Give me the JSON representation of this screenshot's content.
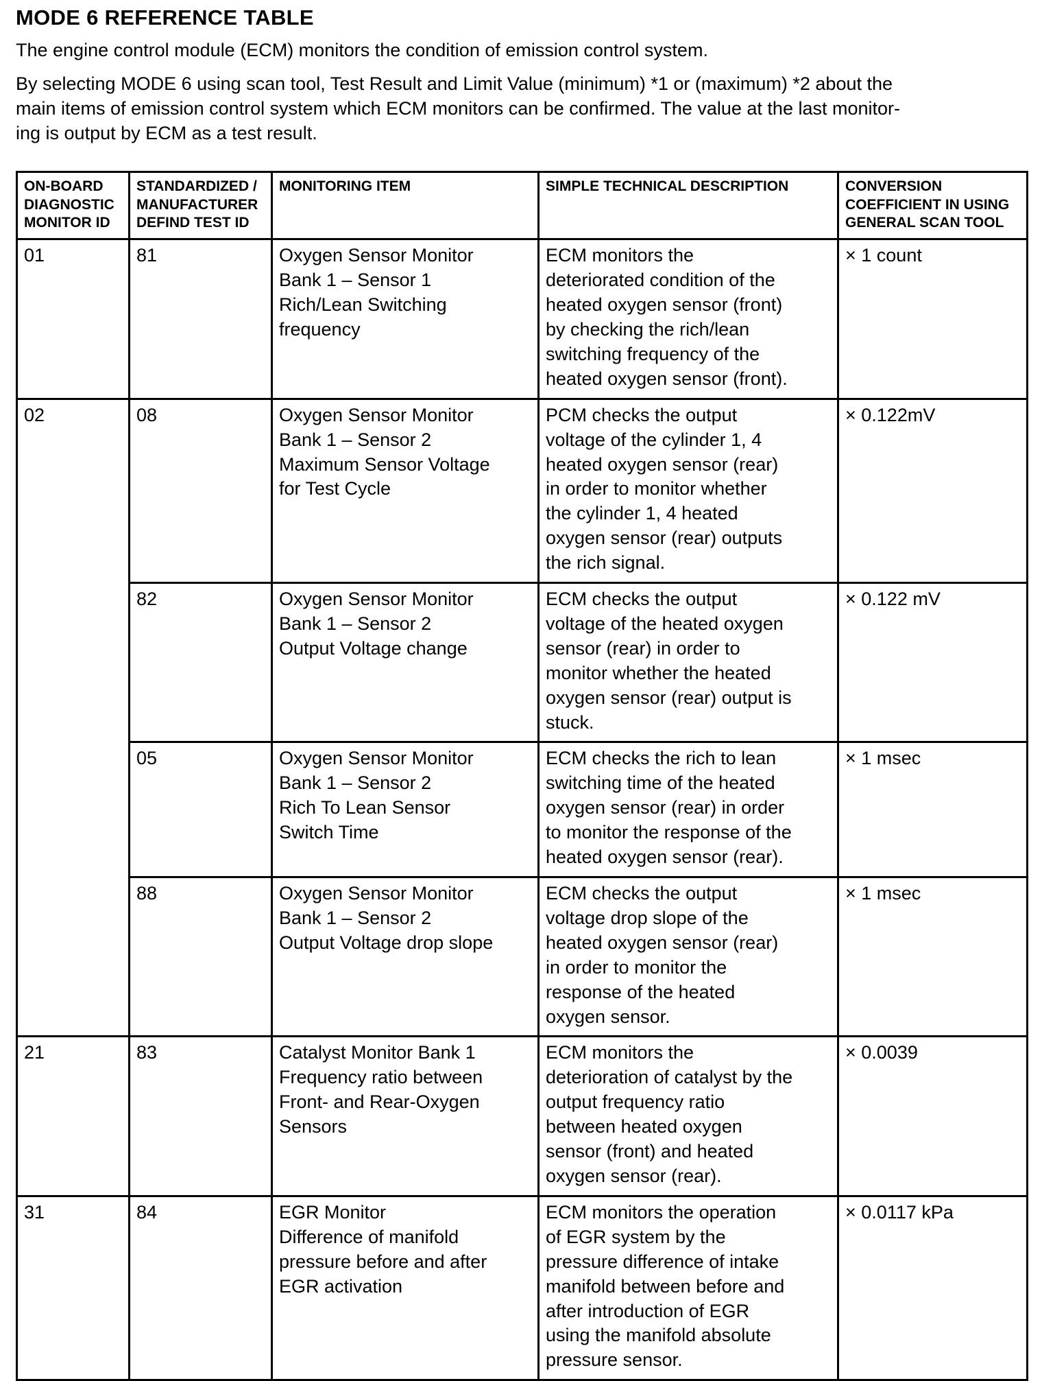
{
  "page": {
    "title": "MODE 6 REFERENCE TABLE",
    "intro1": "The engine control module (ECM) monitors the condition of emission control system.",
    "intro2": "By selecting MODE 6 using scan tool, Test Result and Limit Value (minimum) *1 or (maximum) *2 about the\nmain items of emission control system which ECM monitors can be confirmed. The value at the last monitor-\ning is output by ECM as a test result."
  },
  "table": {
    "headers": [
      "ON-BOARD\nDIAGNOSTIC\nMONITOR ID",
      "STANDARDIZED /\nMANUFACTURER\nDEFIND TEST ID",
      "MONITORING ITEM",
      "SIMPLE TECHNICAL DESCRIPTION",
      "CONVERSION\nCOEFFICIENT IN USING\nGENERAL SCAN TOOL"
    ],
    "rows": [
      {
        "monitor_id": "01",
        "test_id": "81",
        "item": "Oxygen Sensor Monitor\nBank 1 – Sensor 1\nRich/Lean Switching\nfrequency",
        "description": "ECM monitors the\ndeteriorated condition of the\nheated oxygen sensor (front)\nby checking the rich/lean\nswitching frequency of the\nheated oxygen sensor (front).",
        "coefficient": "× 1 count"
      },
      {
        "monitor_id": "02",
        "test_id": "08",
        "item": "Oxygen Sensor Monitor\nBank 1 – Sensor 2\nMaximum Sensor Voltage\nfor Test Cycle",
        "description": "PCM checks the output\nvoltage of the cylinder 1, 4\nheated oxygen sensor (rear)\nin order to monitor whether\nthe cylinder 1, 4 heated\noxygen sensor (rear) outputs\nthe rich signal.",
        "coefficient": "× 0.122mV"
      },
      {
        "monitor_id": "",
        "test_id": "82",
        "item": "Oxygen Sensor Monitor\nBank 1 – Sensor 2\nOutput Voltage change",
        "description": "ECM checks the output\nvoltage of the heated oxygen\nsensor (rear) in order to\nmonitor whether the heated\noxygen sensor (rear) output is\nstuck.",
        "coefficient": "× 0.122 mV"
      },
      {
        "monitor_id": "",
        "test_id": "05",
        "item": "Oxygen Sensor Monitor\nBank 1 – Sensor 2\nRich To Lean Sensor\nSwitch Time",
        "description": "ECM checks the rich to lean\nswitching time of the heated\noxygen sensor (rear) in order\nto monitor the response of the\nheated oxygen sensor (rear).",
        "coefficient": "× 1 msec"
      },
      {
        "monitor_id": "",
        "test_id": "88",
        "item": "Oxygen Sensor Monitor\nBank 1 – Sensor 2\nOutput Voltage drop slope",
        "description": "ECM checks the output\nvoltage drop slope of the\nheated oxygen sensor (rear)\nin order to monitor the\nresponse of the heated\noxygen sensor.",
        "coefficient": "× 1 msec"
      },
      {
        "monitor_id": "21",
        "test_id": "83",
        "item": "Catalyst Monitor Bank 1\nFrequency ratio between\nFront- and Rear-Oxygen\nSensors",
        "description": "ECM monitors the\ndeterioration of catalyst by the\noutput frequency ratio\nbetween heated oxygen\nsensor (front) and heated\noxygen sensor (rear).",
        "coefficient": "× 0.0039"
      },
      {
        "monitor_id": "31",
        "test_id": "84",
        "item": "EGR Monitor\nDifference of manifold\npressure before and after\nEGR activation",
        "description": "ECM monitors the operation\nof EGR system by the\npressure difference of intake\nmanifold between before and\nafter introduction of EGR\nusing the manifold absolute\npressure sensor.",
        "coefficient": "× 0.0117 kPa"
      }
    ]
  }
}
